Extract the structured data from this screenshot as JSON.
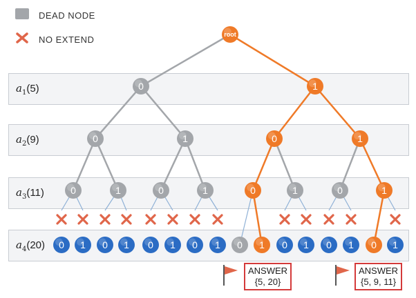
{
  "legend": {
    "dead_node": "DEAD NODE",
    "no_extend": "NO EXTEND"
  },
  "colors": {
    "dead": "#a3a6aa",
    "active": "#ef7a28",
    "leaf": "#2b6cc4",
    "cross": "#e0664a",
    "flag": "#e0664a"
  },
  "levels": [
    {
      "var": "a",
      "sub": "1",
      "val": "(5)"
    },
    {
      "var": "a",
      "sub": "2",
      "val": "(9)"
    },
    {
      "var": "a",
      "sub": "3",
      "val": "(11)"
    },
    {
      "var": "a",
      "sub": "4",
      "val": "(20)"
    }
  ],
  "tree": {
    "root_label": "root",
    "l1": [
      {
        "label": "0",
        "state": "dead"
      },
      {
        "label": "1",
        "state": "active"
      }
    ],
    "l2": [
      {
        "label": "0",
        "state": "dead"
      },
      {
        "label": "1",
        "state": "dead"
      },
      {
        "label": "0",
        "state": "active"
      },
      {
        "label": "1",
        "state": "active"
      }
    ],
    "l3": [
      {
        "label": "0",
        "state": "dead"
      },
      {
        "label": "1",
        "state": "dead"
      },
      {
        "label": "0",
        "state": "dead"
      },
      {
        "label": "1",
        "state": "dead"
      },
      {
        "label": "0",
        "state": "active"
      },
      {
        "label": "1",
        "state": "dead"
      },
      {
        "label": "0",
        "state": "dead"
      },
      {
        "label": "1",
        "state": "active"
      }
    ],
    "l4": [
      {
        "label": "0",
        "state": "leaf",
        "cross": true
      },
      {
        "label": "1",
        "state": "leaf",
        "cross": true
      },
      {
        "label": "0",
        "state": "leaf",
        "cross": true
      },
      {
        "label": "1",
        "state": "leaf",
        "cross": true
      },
      {
        "label": "0",
        "state": "leaf",
        "cross": true
      },
      {
        "label": "1",
        "state": "leaf",
        "cross": true
      },
      {
        "label": "0",
        "state": "leaf",
        "cross": true
      },
      {
        "label": "1",
        "state": "leaf",
        "cross": true
      },
      {
        "label": "0",
        "state": "dead",
        "cross": false
      },
      {
        "label": "1",
        "state": "active",
        "cross": false
      },
      {
        "label": "0",
        "state": "leaf",
        "cross": true
      },
      {
        "label": "1",
        "state": "leaf",
        "cross": true
      },
      {
        "label": "0",
        "state": "leaf",
        "cross": true
      },
      {
        "label": "1",
        "state": "leaf",
        "cross": true
      },
      {
        "label": "0",
        "state": "active",
        "cross": false
      },
      {
        "label": "1",
        "state": "leaf",
        "cross": true
      }
    ]
  },
  "answers": [
    {
      "title": "ANSWER",
      "set": "{5, 20}"
    },
    {
      "title": "ANSWER",
      "set": "{5, 9, 11}"
    }
  ]
}
